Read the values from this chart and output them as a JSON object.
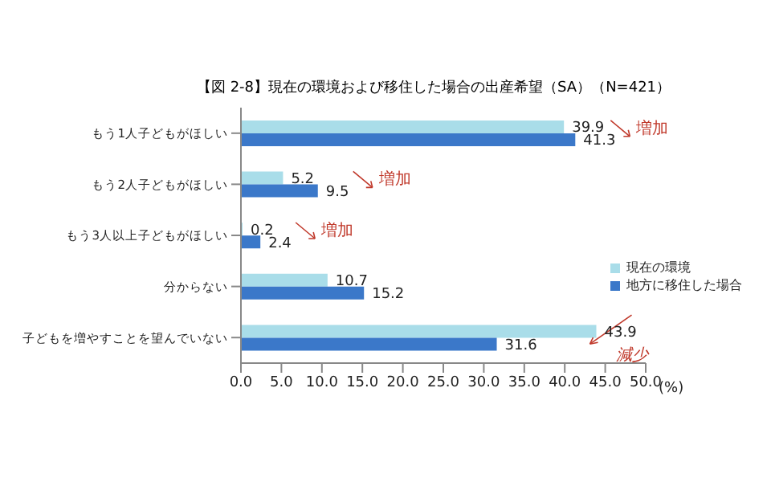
{
  "chart_data": {
    "type": "bar",
    "orientation": "horizontal",
    "title": "【図 2-8】現在の環境および移住した場合の出産希望（SA）（N=421）",
    "xlabel": "(%)",
    "categories": [
      "もう1人子どもがほしい",
      "もう2人子どもがほしい",
      "もう3人以上子どもがほしい",
      "分からない",
      "子どもを増やすことを望んでいない"
    ],
    "series": [
      {
        "name": "現在の環境",
        "color": "#a9dde9",
        "values": [
          39.9,
          5.2,
          0.2,
          10.7,
          43.9
        ]
      },
      {
        "name": "地方に移住した場合",
        "color": "#3b78c9",
        "values": [
          41.3,
          9.5,
          2.4,
          15.2,
          31.6
        ]
      }
    ],
    "xlim": [
      0,
      50
    ],
    "xticks": [
      {
        "value": 0,
        "label": "0.0"
      },
      {
        "value": 5,
        "label": "5.0"
      },
      {
        "value": 10,
        "label": "10.0"
      },
      {
        "value": 15,
        "label": "15.0"
      },
      {
        "value": 20,
        "label": "20.0"
      },
      {
        "value": 25,
        "label": "25.0"
      },
      {
        "value": 30,
        "label": "30.0"
      },
      {
        "value": 35,
        "label": "35.0"
      },
      {
        "value": 40,
        "label": "40.0"
      },
      {
        "value": 45,
        "label": "45.0"
      },
      {
        "value": 50,
        "label": "50.0"
      }
    ],
    "data_labels": true,
    "legend": "bottom right",
    "grid": false,
    "annotations": [
      "増加",
      "増加",
      "増加",
      "減少"
    ]
  }
}
